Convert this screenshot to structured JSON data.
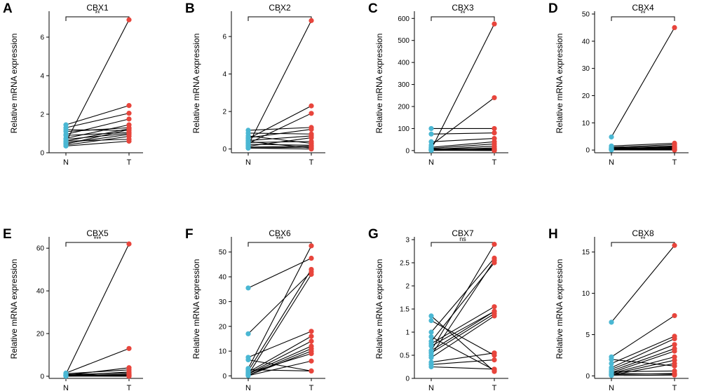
{
  "colors": {
    "normal": "#4ab7d3",
    "tumor": "#e8453c",
    "line": "#000000"
  },
  "chart_data": [
    {
      "panel": "A",
      "type": "paired-dot",
      "title": "CBX1",
      "ylabel": "Relative mRNA expression",
      "categories": [
        "N",
        "T"
      ],
      "ylim": [
        0,
        7.2
      ],
      "yticks": [
        0,
        2,
        4,
        6
      ],
      "significance": "**",
      "pairs": [
        [
          0.55,
          6.9
        ],
        [
          1.45,
          2.45
        ],
        [
          1.3,
          2.05
        ],
        [
          0.95,
          1.75
        ],
        [
          0.75,
          1.45
        ],
        [
          1.1,
          1.3
        ],
        [
          0.6,
          1.25
        ],
        [
          0.45,
          1.2
        ],
        [
          1.2,
          1.15
        ],
        [
          0.9,
          1.05
        ],
        [
          0.7,
          1.0
        ],
        [
          0.5,
          0.95
        ],
        [
          0.4,
          0.85
        ],
        [
          0.6,
          0.7
        ],
        [
          0.35,
          0.6
        ]
      ]
    },
    {
      "panel": "B",
      "type": "paired-dot",
      "title": "CBX2",
      "ylabel": "Relative mRNA expression",
      "categories": [
        "N",
        "T"
      ],
      "ylim": [
        -0.2,
        7.2
      ],
      "yticks": [
        0,
        2,
        4,
        6
      ],
      "significance": "*",
      "pairs": [
        [
          0.2,
          6.85
        ],
        [
          0.55,
          2.3
        ],
        [
          0.3,
          1.9
        ],
        [
          1.0,
          1.15
        ],
        [
          0.6,
          1.05
        ],
        [
          0.85,
          0.8
        ],
        [
          0.45,
          0.7
        ],
        [
          0.15,
          0.6
        ],
        [
          0.35,
          0.4
        ],
        [
          0.7,
          0.3
        ],
        [
          0.25,
          0.2
        ],
        [
          0.1,
          0.15
        ],
        [
          0.05,
          0.1
        ],
        [
          0.4,
          0.05
        ],
        [
          0.05,
          0.0
        ]
      ]
    },
    {
      "panel": "C",
      "type": "paired-dot",
      "title": "CBX3",
      "ylabel": "Relative mRNA expression",
      "categories": [
        "N",
        "T"
      ],
      "ylim": [
        -10,
        620
      ],
      "yticks": [
        0,
        100,
        200,
        300,
        400,
        500,
        600
      ],
      "significance": "**",
      "pairs": [
        [
          5,
          575
        ],
        [
          25,
          240
        ],
        [
          100,
          100
        ],
        [
          75,
          80
        ],
        [
          40,
          55
        ],
        [
          15,
          40
        ],
        [
          10,
          30
        ],
        [
          5,
          20
        ],
        [
          3,
          12
        ],
        [
          8,
          8
        ],
        [
          2,
          5
        ],
        [
          1,
          3
        ],
        [
          4,
          2
        ],
        [
          2,
          1
        ],
        [
          1,
          0
        ]
      ]
    },
    {
      "panel": "D",
      "type": "paired-dot",
      "title": "CBX4",
      "ylabel": "Relative mRNA expression",
      "categories": [
        "N",
        "T"
      ],
      "ylim": [
        -1,
        50
      ],
      "yticks": [
        0,
        10,
        20,
        30,
        40,
        50
      ],
      "significance": "**",
      "pairs": [
        [
          4.8,
          45
        ],
        [
          1.5,
          2.5
        ],
        [
          1.0,
          2.0
        ],
        [
          0.8,
          1.5
        ],
        [
          0.5,
          1.2
        ],
        [
          0.3,
          1.0
        ],
        [
          0.7,
          0.8
        ],
        [
          0.2,
          0.6
        ],
        [
          0.4,
          0.4
        ],
        [
          0.1,
          0.3
        ],
        [
          0.6,
          0.2
        ],
        [
          0.2,
          0.1
        ],
        [
          0.1,
          0.05
        ],
        [
          0.3,
          0.9
        ],
        [
          0.05,
          0.0
        ]
      ]
    },
    {
      "panel": "E",
      "type": "paired-dot",
      "title": "CBX5",
      "ylabel": "Relative mRNA expression",
      "categories": [
        "N",
        "T"
      ],
      "ylim": [
        -1,
        64
      ],
      "yticks": [
        0,
        20,
        40,
        60
      ],
      "significance": "***",
      "pairs": [
        [
          1.0,
          62
        ],
        [
          1.5,
          13
        ],
        [
          0.5,
          4.0
        ],
        [
          1.2,
          3.0
        ],
        [
          0.3,
          2.0
        ],
        [
          0.8,
          1.5
        ],
        [
          0.2,
          1.0
        ],
        [
          0.6,
          0.7
        ],
        [
          0.1,
          0.5
        ],
        [
          0.4,
          0.3
        ],
        [
          0.9,
          0.2
        ],
        [
          0.2,
          0.1
        ],
        [
          0.05,
          0.05
        ],
        [
          0.3,
          0.0
        ],
        [
          0.1,
          0.8
        ]
      ]
    },
    {
      "panel": "F",
      "type": "paired-dot",
      "title": "CBX6",
      "ylabel": "Relative mRNA expression",
      "categories": [
        "N",
        "T"
      ],
      "ylim": [
        -1,
        55
      ],
      "yticks": [
        0,
        10,
        20,
        30,
        40,
        50
      ],
      "significance": "***",
      "pairs": [
        [
          35.5,
          47.5
        ],
        [
          17,
          42
        ],
        [
          7.5,
          18
        ],
        [
          6.5,
          2
        ],
        [
          3,
          52.5
        ],
        [
          2,
          43
        ],
        [
          1.5,
          16
        ],
        [
          1,
          14
        ],
        [
          0.5,
          41
        ],
        [
          0.8,
          12
        ],
        [
          0.3,
          11
        ],
        [
          0.2,
          10
        ],
        [
          0.1,
          6
        ],
        [
          2.5,
          2
        ],
        [
          1.2,
          9
        ]
      ]
    },
    {
      "panel": "G",
      "type": "paired-dot",
      "title": "CBX7",
      "ylabel": "Relative mRNA expression",
      "categories": [
        "N",
        "T"
      ],
      "ylim": [
        0,
        3.0
      ],
      "yticks": [
        0,
        0.5,
        1.0,
        1.5,
        2.0,
        2.5,
        3.0
      ],
      "significance": "ns",
      "pairs": [
        [
          1.35,
          0.15
        ],
        [
          1.25,
          0.5
        ],
        [
          1.0,
          2.6
        ],
        [
          0.8,
          2.5
        ],
        [
          0.75,
          1.55
        ],
        [
          0.7,
          1.45
        ],
        [
          0.6,
          2.9
        ],
        [
          0.55,
          1.4
        ],
        [
          0.5,
          2.55
        ],
        [
          0.45,
          1.35
        ],
        [
          0.35,
          0.55
        ],
        [
          0.3,
          0.4
        ],
        [
          0.25,
          0.2
        ],
        [
          0.9,
          0.18
        ],
        [
          0.6,
          1.45
        ]
      ]
    },
    {
      "panel": "H",
      "type": "paired-dot",
      "title": "CBX8",
      "ylabel": "Relative mRNA expression",
      "categories": [
        "N",
        "T"
      ],
      "ylim": [
        -0.3,
        16.5
      ],
      "yticks": [
        0,
        5,
        10,
        15
      ],
      "significance": "**",
      "pairs": [
        [
          6.5,
          15.8
        ],
        [
          2.3,
          7.3
        ],
        [
          1.5,
          4.8
        ],
        [
          1.0,
          4.5
        ],
        [
          0.8,
          3.8
        ],
        [
          0.6,
          3.3
        ],
        [
          0.4,
          3.0
        ],
        [
          0.3,
          2.3
        ],
        [
          0.2,
          1.9
        ],
        [
          0.1,
          1.5
        ],
        [
          2.0,
          1.2
        ],
        [
          0.5,
          0.6
        ],
        [
          0.15,
          0.3
        ],
        [
          0.05,
          0.1
        ],
        [
          0.3,
          0.2
        ]
      ]
    }
  ]
}
